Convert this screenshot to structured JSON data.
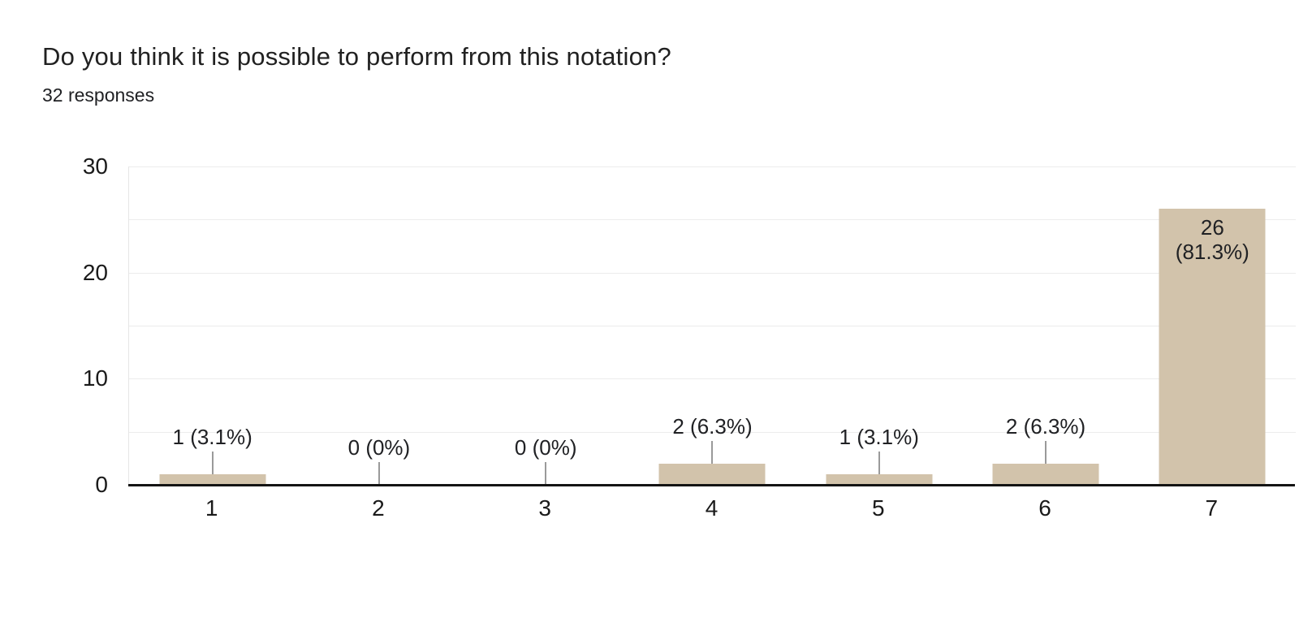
{
  "header": {
    "title": "Do you think it is possible to perform from this notation?",
    "subtitle": "32 responses"
  },
  "chart_data": {
    "type": "bar",
    "title": "Do you think it is possible to perform from this notation?",
    "subtitle": "32 responses",
    "categories": [
      "1",
      "2",
      "3",
      "4",
      "5",
      "6",
      "7"
    ],
    "values": [
      1,
      0,
      0,
      2,
      1,
      2,
      26
    ],
    "bars": [
      {
        "category": "1",
        "value": 1,
        "label": "1 (3.1%)",
        "label_placement": "outside"
      },
      {
        "category": "2",
        "value": 0,
        "label": "0 (0%)",
        "label_placement": "outside"
      },
      {
        "category": "3",
        "value": 0,
        "label": "0 (0%)",
        "label_placement": "outside"
      },
      {
        "category": "4",
        "value": 2,
        "label": "2 (6.3%)",
        "label_placement": "outside"
      },
      {
        "category": "5",
        "value": 1,
        "label": "1 (3.1%)",
        "label_placement": "outside"
      },
      {
        "category": "6",
        "value": 2,
        "label": "2 (6.3%)",
        "label_placement": "outside"
      },
      {
        "category": "7",
        "value": 26,
        "label": "26 (81.3%)",
        "label_placement": "inside",
        "label_lines": [
          "26",
          "(81.3%)"
        ]
      }
    ],
    "xlabel": "",
    "ylabel": "",
    "ylim": [
      0,
      30
    ],
    "yticks": [
      0,
      10,
      20,
      30
    ],
    "grid_step": 5,
    "grid": true,
    "legend": "none",
    "colors": {
      "bar": "#d2c3ab",
      "gridline": "#ececec",
      "baseline": "#141414",
      "stem": "#9a9a9a",
      "text": "#202124",
      "tick_text": "#1a1a1a"
    }
  }
}
